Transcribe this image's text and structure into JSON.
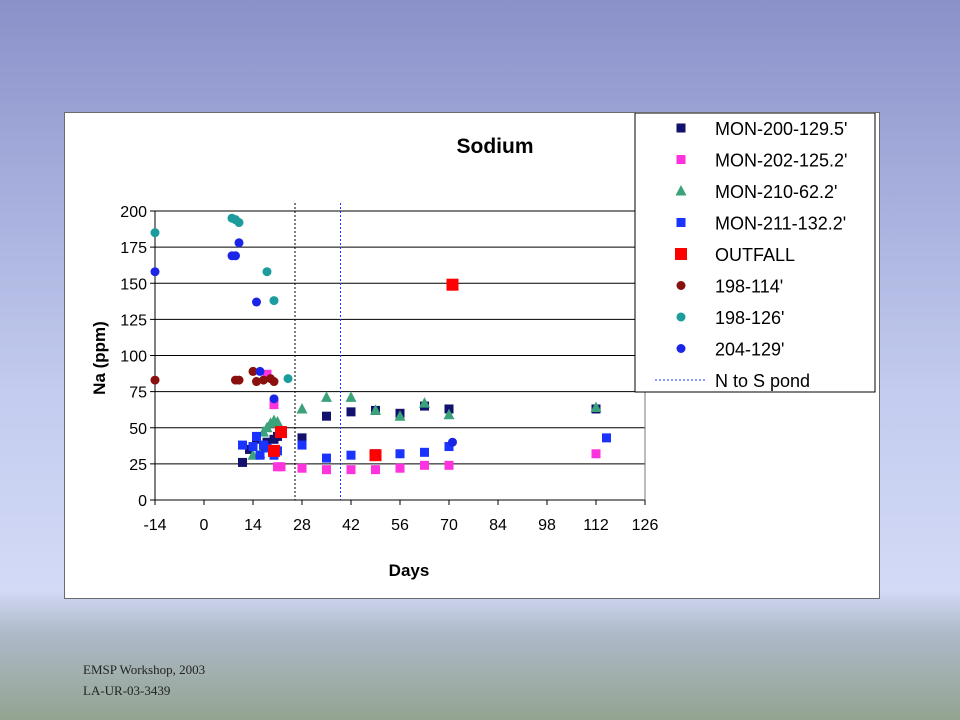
{
  "footer": {
    "line1": "EMSP Workshop, 2003",
    "line2": "LA-UR-03-3439"
  },
  "colors": {
    "navy": "#12126e",
    "magenta": "#ff33dd",
    "green": "#3aa37a",
    "blue": "#1a33ff",
    "red": "#ff0000",
    "maroon": "#8a0f0f",
    "teal": "#1c9c9c",
    "royal": "#1b25e8"
  },
  "chart_data": {
    "type": "scatter",
    "title": "Sodium",
    "xlabel": "Days",
    "ylabel": "Na (ppm)",
    "xlim": [
      -14,
      126
    ],
    "ylim": [
      0,
      200
    ],
    "xticks": [
      "-14",
      "0",
      "14",
      "28",
      "42",
      "56",
      "70",
      "84",
      "98",
      "112",
      "126"
    ],
    "yticks": [
      "0",
      "25",
      "50",
      "75",
      "100",
      "125",
      "150",
      "175",
      "200"
    ],
    "grid": "horizontal",
    "legend_position": "top-right",
    "vlines": [
      {
        "x": 26,
        "style": "dotted",
        "color": "#000000"
      },
      {
        "x": 39,
        "style": "dotted",
        "color": "#1a33ff"
      }
    ],
    "series": [
      {
        "name": "MON-200-129.5'",
        "marker": "square",
        "color": "#12126e",
        "points": [
          [
            11,
            26
          ],
          [
            13,
            35
          ],
          [
            15,
            42
          ],
          [
            17,
            37
          ],
          [
            18,
            40
          ],
          [
            20,
            42
          ],
          [
            21,
            44
          ],
          [
            28,
            43
          ],
          [
            35,
            58
          ],
          [
            42,
            61
          ],
          [
            49,
            62
          ],
          [
            56,
            60
          ],
          [
            63,
            65
          ],
          [
            70,
            63
          ],
          [
            112,
            63
          ]
        ]
      },
      {
        "name": "MON-202-125.2'",
        "marker": "square",
        "color": "#ff33dd",
        "points": [
          [
            18,
            87
          ],
          [
            20,
            66
          ],
          [
            21,
            23
          ],
          [
            22,
            23
          ],
          [
            28,
            22
          ],
          [
            35,
            21
          ],
          [
            42,
            21
          ],
          [
            49,
            21
          ],
          [
            56,
            22
          ],
          [
            63,
            24
          ],
          [
            70,
            24
          ],
          [
            112,
            32
          ]
        ]
      },
      {
        "name": "MON-210-62.2'",
        "marker": "triangle",
        "color": "#3aa37a",
        "points": [
          [
            14,
            31
          ],
          [
            16,
            32
          ],
          [
            17,
            47
          ],
          [
            18,
            50
          ],
          [
            19,
            53
          ],
          [
            20,
            55
          ],
          [
            21,
            54
          ],
          [
            28,
            63
          ],
          [
            35,
            71
          ],
          [
            42,
            71
          ],
          [
            49,
            62
          ],
          [
            56,
            58
          ],
          [
            63,
            67
          ],
          [
            70,
            59
          ],
          [
            112,
            64
          ]
        ]
      },
      {
        "name": "MON-211-132.2'",
        "marker": "square",
        "color": "#1a33ff",
        "points": [
          [
            11,
            38
          ],
          [
            14,
            37
          ],
          [
            15,
            44
          ],
          [
            16,
            31
          ],
          [
            17,
            38
          ],
          [
            18,
            36
          ],
          [
            20,
            31
          ],
          [
            21,
            34
          ],
          [
            22,
            48
          ],
          [
            28,
            38
          ],
          [
            35,
            29
          ],
          [
            42,
            31
          ],
          [
            49,
            32
          ],
          [
            56,
            32
          ],
          [
            63,
            33
          ],
          [
            70,
            37
          ],
          [
            115,
            43
          ]
        ]
      },
      {
        "name": "OUTFALL",
        "marker": "square-large",
        "color": "#ff0000",
        "points": [
          [
            20,
            34
          ],
          [
            22,
            47
          ],
          [
            49,
            31
          ],
          [
            71,
            149
          ]
        ]
      },
      {
        "name": "198-114'",
        "marker": "circle",
        "color": "#8a0f0f",
        "points": [
          [
            -14,
            83
          ],
          [
            9,
            83
          ],
          [
            10,
            83
          ],
          [
            14,
            89
          ],
          [
            15,
            82
          ],
          [
            17,
            83
          ],
          [
            19,
            84
          ],
          [
            20,
            82
          ]
        ]
      },
      {
        "name": "198-126'",
        "marker": "circle",
        "color": "#1c9c9c",
        "points": [
          [
            -14,
            185
          ],
          [
            8,
            195
          ],
          [
            9,
            194
          ],
          [
            10,
            192
          ],
          [
            18,
            158
          ],
          [
            20,
            138
          ],
          [
            24,
            84
          ]
        ]
      },
      {
        "name": "204-129'",
        "marker": "circle",
        "color": "#1b25e8",
        "points": [
          [
            -14,
            158
          ],
          [
            8,
            169
          ],
          [
            9,
            169
          ],
          [
            10,
            178
          ],
          [
            15,
            137
          ],
          [
            16,
            89
          ],
          [
            20,
            70
          ],
          [
            71,
            40
          ]
        ]
      }
    ],
    "legend_extra": {
      "name": "N to S pond",
      "style": "dotted",
      "color": "#1a33ff"
    }
  }
}
